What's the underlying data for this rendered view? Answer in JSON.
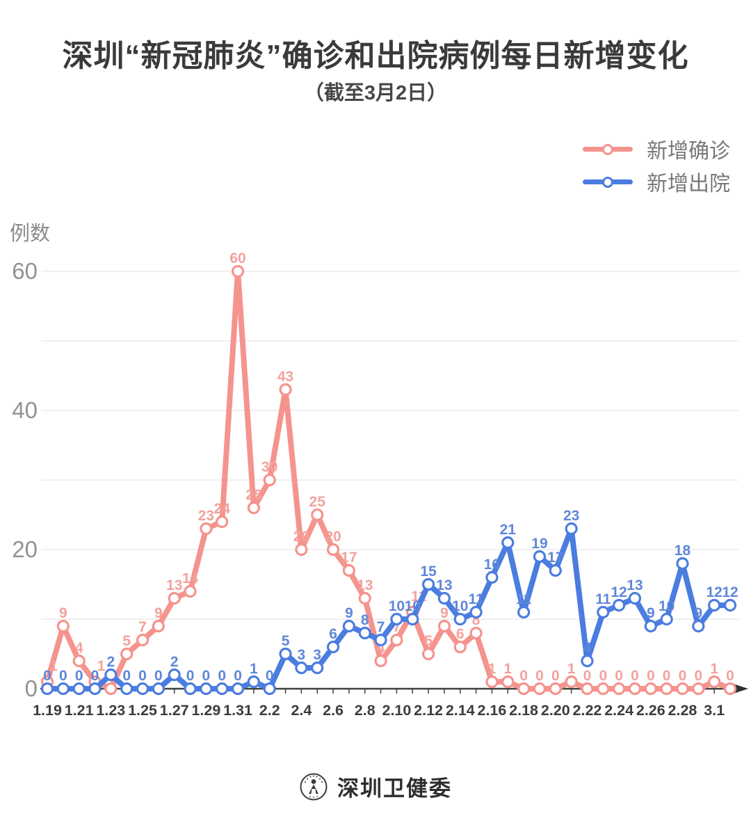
{
  "title": "深圳“新冠肺炎”确诊和出院病例每日新增变化",
  "subtitle": "（截至3月2日）",
  "y_axis_label": "例数",
  "legend": [
    {
      "label": "新增确诊",
      "color": "#f5938d"
    },
    {
      "label": "新增出院",
      "color": "#4b7de0"
    }
  ],
  "footer": {
    "brand": "深圳卫健委",
    "logo_icon": "shenzhen-health-commission-logo"
  },
  "colors": {
    "confirmed": "#f5938d",
    "discharged": "#4b7de0",
    "confirmed_label": "#f3a29c",
    "discharged_label": "#5f87d8",
    "axis": "#3f3f3f",
    "grid": "#e7e7e7",
    "ytick_text": "#929292",
    "xtick_text": "#3c3c3c",
    "title_text": "#3a3a3a"
  },
  "chart_data": {
    "type": "line",
    "x": [
      "1.19",
      "1.20",
      "1.21",
      "1.22",
      "1.23",
      "1.24",
      "1.25",
      "1.26",
      "1.27",
      "1.28",
      "1.29",
      "1.30",
      "1.31",
      "2.1",
      "2.2",
      "2.3",
      "2.4",
      "2.5",
      "2.6",
      "2.7",
      "2.8",
      "2.9",
      "2.10",
      "2.11",
      "2.12",
      "2.13",
      "2.14",
      "2.15",
      "2.16",
      "2.17",
      "2.18",
      "2.19",
      "2.20",
      "2.21",
      "2.22",
      "2.23",
      "2.24",
      "2.25",
      "2.26",
      "2.27",
      "2.28",
      "2.29",
      "3.1",
      "3.2"
    ],
    "x_labels_shown": [
      "1.19",
      "1.21",
      "1.23",
      "1.25",
      "1.27",
      "1.29",
      "1.31",
      "2.2",
      "2.4",
      "2.6",
      "2.8",
      "2.10",
      "2.12",
      "2.14",
      "2.16",
      "2.18",
      "2.20",
      "2.22",
      "2.24",
      "2.26",
      "2.28",
      "3.1"
    ],
    "series": [
      {
        "name": "新增确诊",
        "color": "#f5938d",
        "label_color": "#f3a29c",
        "values": [
          1,
          9,
          4,
          1,
          0,
          5,
          7,
          9,
          13,
          14,
          23,
          24,
          60,
          26,
          30,
          43,
          20,
          25,
          20,
          17,
          13,
          4,
          7,
          11,
          5,
          9,
          6,
          8,
          1,
          1,
          0,
          0,
          0,
          1,
          0,
          0,
          0,
          0,
          0,
          0,
          0,
          0,
          1,
          0
        ]
      },
      {
        "name": "新增出院",
        "color": "#4b7de0",
        "label_color": "#5f87d8",
        "values": [
          0,
          0,
          0,
          0,
          2,
          0,
          0,
          0,
          2,
          0,
          0,
          0,
          0,
          1,
          0,
          5,
          3,
          3,
          6,
          9,
          8,
          7,
          10,
          10,
          15,
          13,
          10,
          11,
          16,
          21,
          11,
          19,
          17,
          23,
          4,
          11,
          12,
          13,
          9,
          10,
          18,
          9,
          12,
          12
        ]
      }
    ],
    "ylabel": "例数",
    "ylim": [
      0,
      60
    ],
    "yticks": [
      0,
      20,
      40,
      60
    ],
    "gridline_step": 10,
    "grid": "horizontal, every 10 units",
    "legend_position": "top-right",
    "point_labels": "each point labeled with its value"
  }
}
